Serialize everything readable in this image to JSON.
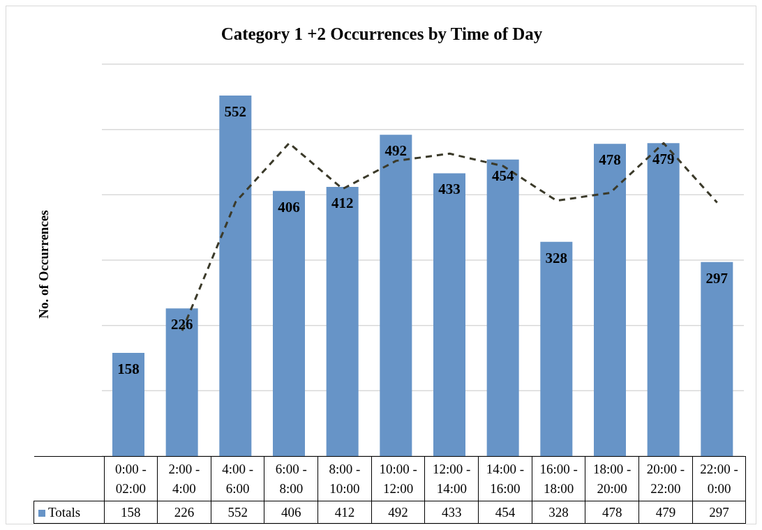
{
  "chart_data": {
    "type": "bar",
    "title": "Category 1 +2 Occurrences by Time of Day",
    "ylabel": "No. of Occurrences",
    "categories": [
      "0:00 - 02:00",
      "2:00 - 4:00",
      "4:00 - 6:00",
      "6:00 - 8:00",
      "8:00 - 10:00",
      "10:00 - 12:00",
      "12:00 - 14:00",
      "14:00 - 16:00",
      "16:00 - 18:00",
      "18:00 - 20:00",
      "20:00 - 22:00",
      "22:00 - 0:00"
    ],
    "series": [
      {
        "name": "Totals",
        "color": "#6794c7",
        "values": [
          158,
          226,
          552,
          406,
          412,
          492,
          433,
          454,
          328,
          478,
          479,
          297
        ],
        "value_labels": [
          "158",
          "226",
          "552",
          "406",
          "412",
          "492",
          "433",
          "454",
          "328",
          "478",
          "479",
          "297"
        ]
      },
      {
        "type": "line",
        "color": "#3b3a2a",
        "line_style": "dashed",
        "values": [
          null,
          192,
          389,
          479,
          409,
          452,
          463,
          444,
          391,
          403,
          479,
          388
        ]
      }
    ],
    "ylim": [
      0,
      600
    ],
    "yticks": [
      {
        "value": 0,
        "label": null
      },
      {
        "value": 100,
        "label": null
      },
      {
        "value": 200,
        "label": null
      },
      {
        "value": 300,
        "label": null
      },
      {
        "value": 400,
        "label": null
      },
      {
        "value": 500,
        "label": null
      },
      {
        "value": 600,
        "label": null
      }
    ],
    "tick_labels": "x",
    "grid": "y",
    "legend": "bottom"
  }
}
